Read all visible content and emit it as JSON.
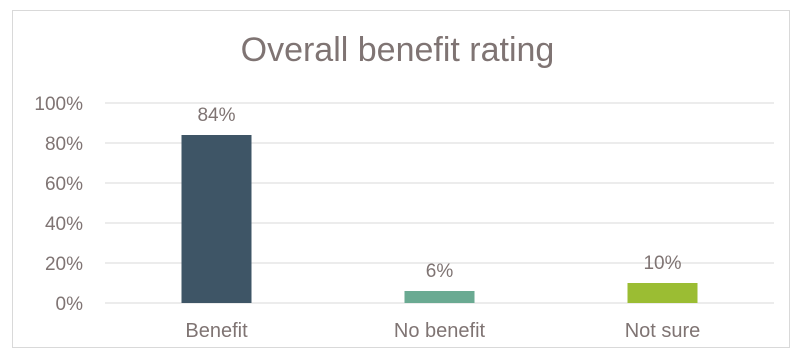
{
  "chart_data": {
    "type": "bar",
    "title": "Overall benefit rating",
    "categories": [
      "Benefit",
      "No benefit",
      "Not sure"
    ],
    "values": [
      84,
      6,
      10
    ],
    "value_labels": [
      "84%",
      "6%",
      "10%"
    ],
    "colors": [
      "#3e5566",
      "#6aaa92",
      "#9bbd33"
    ],
    "ylim": [
      0,
      100
    ],
    "yticks": [
      0,
      20,
      40,
      60,
      80,
      100
    ],
    "ytick_labels": [
      "0%",
      "20%",
      "40%",
      "60%",
      "80%",
      "100%"
    ],
    "xlabel": "",
    "ylabel": "",
    "grid": true,
    "legend": "none"
  }
}
